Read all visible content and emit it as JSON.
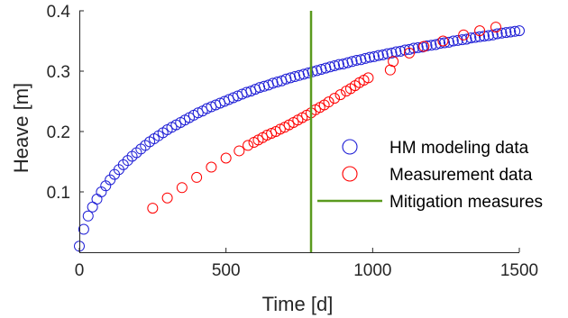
{
  "chart_data": {
    "type": "scatter",
    "xlabel": "Time [d]",
    "ylabel": "Heave [m]",
    "xlim": [
      0,
      1500
    ],
    "ylim": [
      0,
      0.4
    ],
    "x_ticks": [
      0,
      500,
      1000,
      1500
    ],
    "y_ticks": [
      0.1,
      0.2,
      0.3,
      0.4
    ],
    "x_tick_labels": [
      "0",
      "500",
      "1000",
      "1500"
    ],
    "y_tick_labels": [
      "0.1",
      "0.2",
      "0.3",
      "0.4"
    ],
    "grid": false,
    "legend_position": "right",
    "series": [
      {
        "name": "HM modeling data",
        "marker": "circle-open",
        "color": "#1f1fd6",
        "x": [
          0,
          15,
          30,
          45,
          60,
          75,
          90,
          105,
          120,
          135,
          150,
          165,
          180,
          195,
          210,
          225,
          240,
          255,
          270,
          285,
          300,
          315,
          330,
          345,
          360,
          375,
          390,
          405,
          420,
          435,
          450,
          465,
          480,
          495,
          510,
          525,
          540,
          555,
          570,
          585,
          600,
          615,
          630,
          645,
          660,
          675,
          690,
          705,
          720,
          735,
          750,
          765,
          780,
          795,
          810,
          825,
          840,
          855,
          870,
          885,
          900,
          915,
          930,
          945,
          960,
          975,
          990,
          1005,
          1020,
          1035,
          1050,
          1065,
          1080,
          1095,
          1110,
          1125,
          1140,
          1155,
          1170,
          1185,
          1200,
          1215,
          1230,
          1245,
          1260,
          1275,
          1290,
          1305,
          1320,
          1335,
          1350,
          1365,
          1380,
          1395,
          1410,
          1425,
          1440,
          1455,
          1470,
          1485,
          1500
        ],
        "y": [
          0.01,
          0.038,
          0.06,
          0.075,
          0.088,
          0.1,
          0.11,
          0.12,
          0.129,
          0.137,
          0.145,
          0.152,
          0.159,
          0.165,
          0.171,
          0.177,
          0.183,
          0.188,
          0.193,
          0.198,
          0.203,
          0.207,
          0.211,
          0.215,
          0.219,
          0.223,
          0.227,
          0.231,
          0.234,
          0.238,
          0.241,
          0.244,
          0.247,
          0.25,
          0.253,
          0.256,
          0.259,
          0.262,
          0.265,
          0.267,
          0.27,
          0.273,
          0.275,
          0.277,
          0.28,
          0.282,
          0.284,
          0.287,
          0.289,
          0.291,
          0.293,
          0.295,
          0.297,
          0.299,
          0.301,
          0.303,
          0.305,
          0.307,
          0.309,
          0.311,
          0.312,
          0.314,
          0.316,
          0.318,
          0.319,
          0.321,
          0.323,
          0.324,
          0.326,
          0.327,
          0.329,
          0.33,
          0.332,
          0.333,
          0.335,
          0.336,
          0.338,
          0.339,
          0.34,
          0.342,
          0.343,
          0.344,
          0.346,
          0.347,
          0.348,
          0.35,
          0.351,
          0.352,
          0.353,
          0.355,
          0.356,
          0.357,
          0.358,
          0.359,
          0.36,
          0.362,
          0.363,
          0.364,
          0.365,
          0.366,
          0.367
        ]
      },
      {
        "name": "Measurement data",
        "marker": "circle-open",
        "color": "#ff0000",
        "x": [
          250,
          300,
          350,
          400,
          450,
          500,
          545,
          575,
          595,
          610,
          625,
          640,
          655,
          670,
          685,
          700,
          715,
          730,
          745,
          760,
          775,
          790,
          805,
          820,
          835,
          850,
          870,
          890,
          910,
          925,
          940,
          955,
          970,
          985,
          1060,
          1070,
          1125,
          1175,
          1240,
          1310,
          1365,
          1420
        ],
        "y": [
          0.073,
          0.09,
          0.107,
          0.124,
          0.141,
          0.156,
          0.168,
          0.177,
          0.182,
          0.186,
          0.19,
          0.194,
          0.197,
          0.2,
          0.204,
          0.207,
          0.211,
          0.215,
          0.219,
          0.223,
          0.227,
          0.231,
          0.236,
          0.24,
          0.244,
          0.249,
          0.255,
          0.261,
          0.267,
          0.271,
          0.276,
          0.281,
          0.285,
          0.289,
          0.302,
          0.316,
          0.33,
          0.341,
          0.35,
          0.36,
          0.367,
          0.373
        ]
      },
      {
        "name": "Mitigation measures",
        "marker": "vertical-line",
        "color": "#5a9a1e",
        "x": [
          790,
          790
        ],
        "y": [
          0,
          0.4
        ]
      }
    ]
  }
}
